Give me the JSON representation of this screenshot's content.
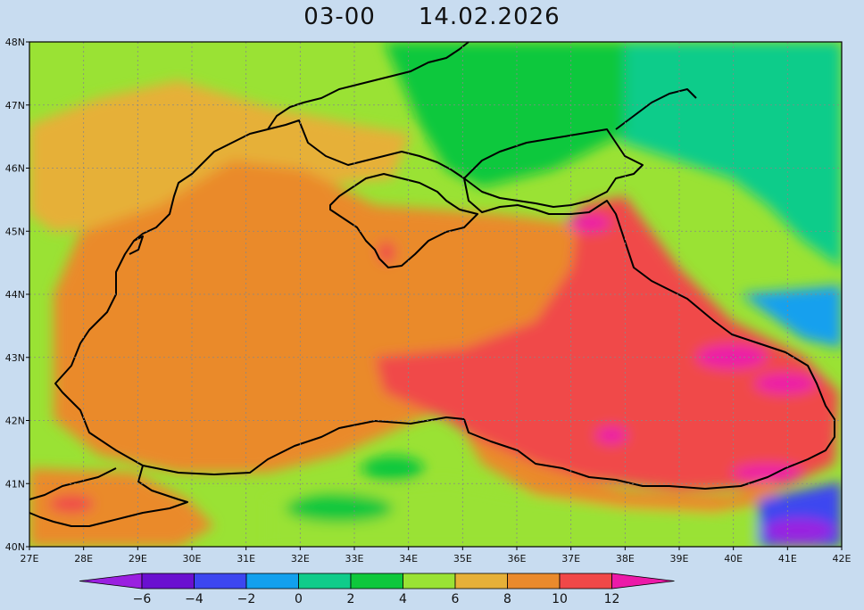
{
  "title": {
    "time": "03-00",
    "date": "14.02.2026"
  },
  "map": {
    "lon_range": [
      27,
      42
    ],
    "lat_range": [
      40,
      48
    ],
    "lon_ticks": [
      "27E",
      "28E",
      "29E",
      "30E",
      "31E",
      "32E",
      "33E",
      "34E",
      "35E",
      "36E",
      "37E",
      "38E",
      "39E",
      "40E",
      "41E",
      "42E"
    ],
    "lat_ticks": [
      "40N",
      "41N",
      "42N",
      "43N",
      "44N",
      "45N",
      "46N",
      "47N",
      "48N"
    ],
    "grid": "dotted"
  },
  "colorbar": {
    "ticks": [
      "-6",
      "-4",
      "-2",
      "0",
      "2",
      "4",
      "6",
      "8",
      "10",
      "12"
    ],
    "colors": [
      "#9a20e0",
      "#6a10d0",
      "#3c46f0",
      "#12a0ee",
      "#10cc8a",
      "#0ec83c",
      "#9ae234",
      "#e6b038",
      "#ea8a2c",
      "#f04848",
      "#ec1aa8"
    ]
  }
}
